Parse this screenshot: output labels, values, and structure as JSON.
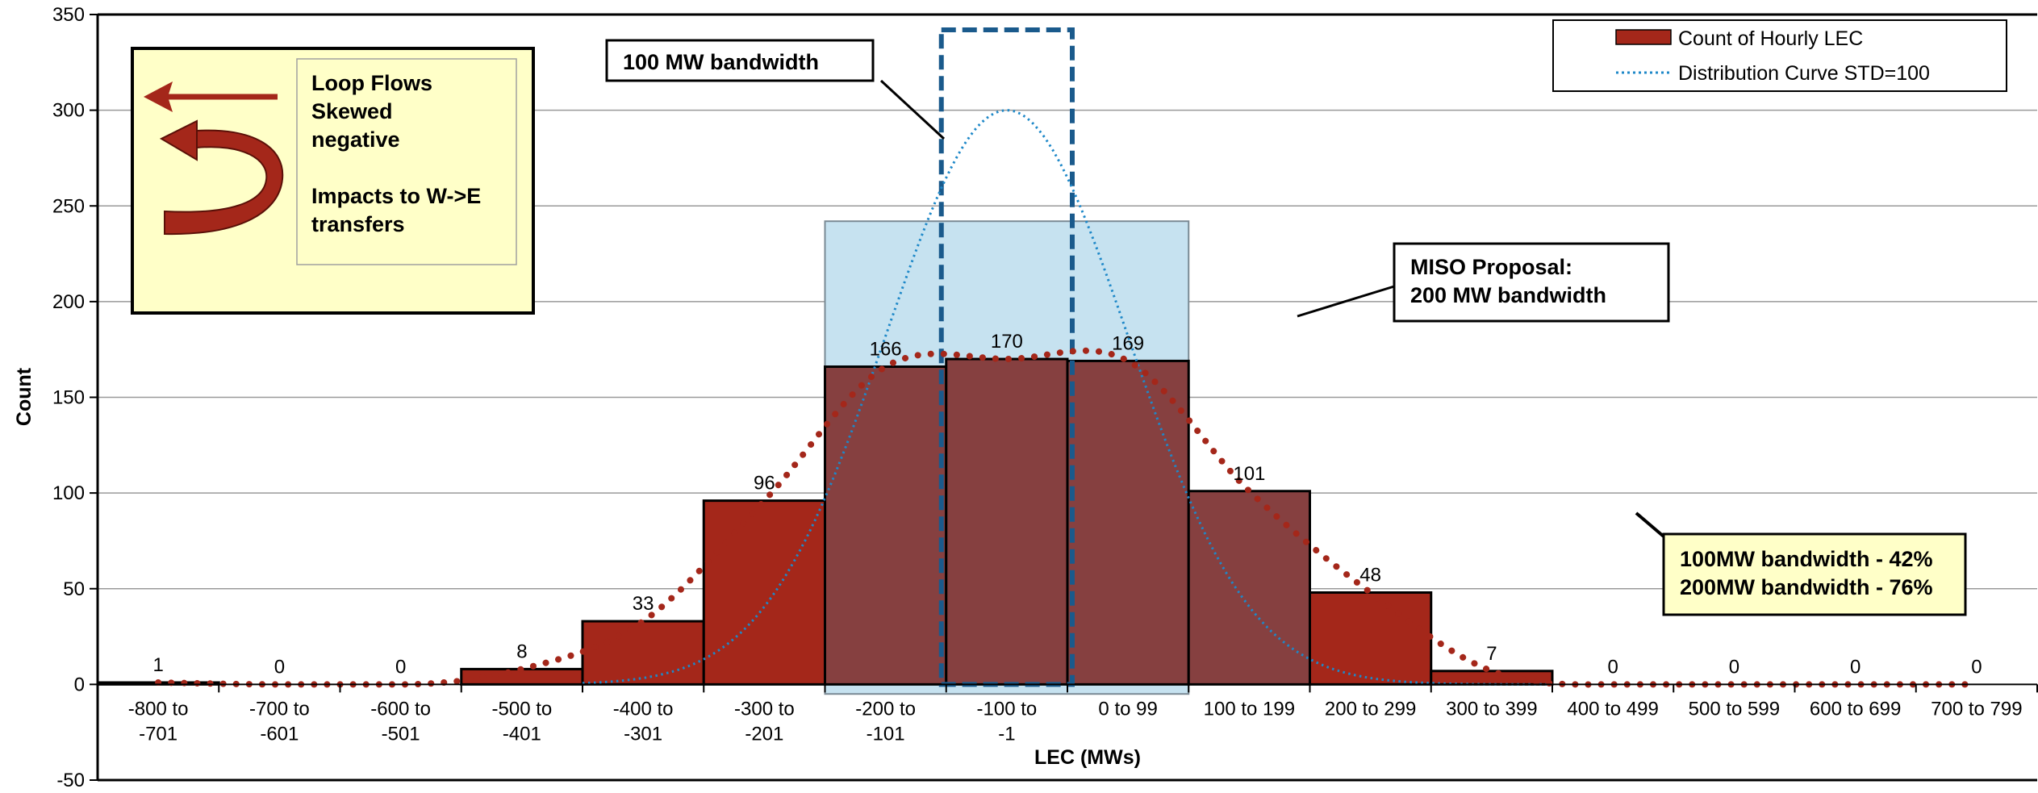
{
  "chart_data": {
    "type": "bar",
    "title": "",
    "xlabel": "LEC (MWs)",
    "ylabel": "Count",
    "ylim": [
      -50,
      350
    ],
    "y_ticks": [
      -50,
      0,
      50,
      100,
      150,
      200,
      250,
      300,
      350
    ],
    "grid": true,
    "categories": [
      [
        "-800 to",
        "-701"
      ],
      [
        "-700 to",
        "-601"
      ],
      [
        "-600 to",
        "-501"
      ],
      [
        "-500 to",
        "-401"
      ],
      [
        "-400 to",
        "-301"
      ],
      [
        "-300 to",
        "-201"
      ],
      [
        "-200 to",
        "-101"
      ],
      [
        "-100 to",
        "-1"
      ],
      [
        "0 to 99"
      ],
      [
        "100 to 199"
      ],
      [
        "200 to 299"
      ],
      [
        "300 to 399"
      ],
      [
        "400 to 499"
      ],
      [
        "500 to 599"
      ],
      [
        "600 to 699"
      ],
      [
        "700 to 799"
      ]
    ],
    "legend_position": "top-right",
    "series": [
      {
        "name": "Count of Hourly LEC",
        "kind": "bar",
        "color": "#A4271A",
        "highlight_color": "#864040",
        "highlight_categories": [
          6,
          7,
          8,
          9
        ],
        "values": [
          1,
          0,
          0,
          8,
          33,
          96,
          166,
          170,
          169,
          101,
          48,
          7,
          0,
          0,
          0,
          0
        ],
        "labels": [
          "1",
          "0",
          "0",
          "8",
          "33",
          "96",
          "166",
          "170",
          "169",
          "101",
          "48",
          "7",
          "0",
          "0",
          "0",
          "0"
        ]
      },
      {
        "name": "Distribution Curve STD=100",
        "kind": "normal-curve",
        "color": "#1E88C8",
        "style": "dotted",
        "mean": -50,
        "std": 100,
        "peak": 300
      },
      {
        "name": "",
        "kind": "dotted-trend",
        "color": "#A4271A",
        "values": [
          1,
          0,
          0,
          8,
          33,
          96,
          166,
          170,
          169,
          101,
          48,
          7,
          0,
          0,
          0,
          0
        ]
      }
    ],
    "regions": {
      "band_200": {
        "x_from": -200,
        "x_to": 100,
        "y_to": 242,
        "fill": "#C6E2F0",
        "border": "#7A8A94"
      },
      "band_100": {
        "x_from": -100,
        "x_to": 0,
        "y_to": 342,
        "color": "#1A5A8C"
      }
    },
    "annotations": {
      "bw100_label": "100 MW bandwidth",
      "miso_line1": "MISO Proposal:",
      "miso_line2": "200 MW bandwidth",
      "result_line1": "100MW bandwidth - 42%",
      "result_line2": "200MW bandwidth - 76%",
      "loop_line1": "Loop Flows",
      "loop_line2": "Skewed",
      "loop_line3": "negative",
      "loop_line4": "Impacts to W->E",
      "loop_line5": "transfers",
      "note_fill": "#FFFFC8",
      "arrow_color": "#A4271A"
    }
  }
}
